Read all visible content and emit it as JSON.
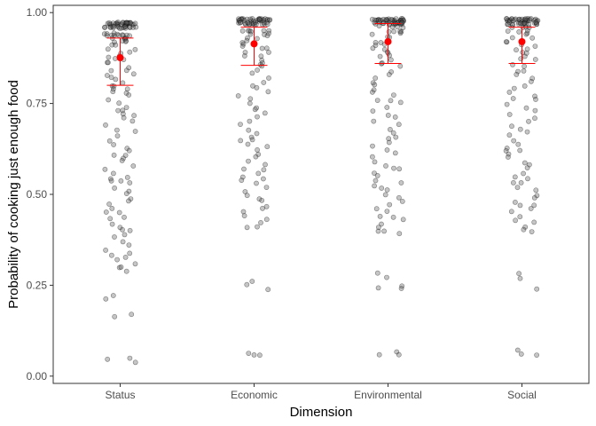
{
  "chart_data": {
    "type": "scatter",
    "title": "",
    "xlabel": "Dimension",
    "ylabel": "Probability of cooking just enough food",
    "categories": [
      "Status",
      "Economic",
      "Environmental",
      "Social"
    ],
    "yticks": [
      0.0,
      0.25,
      0.5,
      0.75,
      1.0
    ],
    "ytick_labels": [
      "0.00",
      "0.25",
      "0.50",
      "0.75",
      "1.00"
    ],
    "ylim": [
      -0.02,
      1.02
    ],
    "grid": false,
    "legend": "none",
    "point_color": "#595959",
    "summary_color": "#ff0000",
    "summary": [
      {
        "category": "Status",
        "mean": 0.876,
        "lower": 0.8,
        "upper": 0.93
      },
      {
        "category": "Economic",
        "mean": 0.914,
        "lower": 0.855,
        "upper": 0.96
      },
      {
        "category": "Environmental",
        "mean": 0.92,
        "lower": 0.86,
        "upper": 0.97
      },
      {
        "category": "Social",
        "mean": 0.92,
        "lower": 0.86,
        "upper": 0.96
      }
    ],
    "series": [
      {
        "category": "Status",
        "values": [
          0.97,
          0.97,
          0.97,
          0.97,
          0.97,
          0.97,
          0.97,
          0.97,
          0.97,
          0.97,
          0.97,
          0.97,
          0.97,
          0.97,
          0.97,
          0.97,
          0.97,
          0.97,
          0.97,
          0.97,
          0.97,
          0.97,
          0.97,
          0.97,
          0.97,
          0.97,
          0.97,
          0.97,
          0.97,
          0.97,
          0.96,
          0.96,
          0.96,
          0.96,
          0.96,
          0.96,
          0.96,
          0.96,
          0.96,
          0.96,
          0.96,
          0.96,
          0.96,
          0.96,
          0.96,
          0.96,
          0.96,
          0.96,
          0.96,
          0.96,
          0.94,
          0.94,
          0.94,
          0.94,
          0.94,
          0.94,
          0.94,
          0.94,
          0.94,
          0.94,
          0.94,
          0.94,
          0.93,
          0.93,
          0.93,
          0.93,
          0.92,
          0.92,
          0.92,
          0.92,
          0.91,
          0.91,
          0.9,
          0.9,
          0.89,
          0.89,
          0.88,
          0.88,
          0.87,
          0.87,
          0.86,
          0.86,
          0.85,
          0.84,
          0.84,
          0.83,
          0.83,
          0.82,
          0.82,
          0.81,
          0.8,
          0.8,
          0.79,
          0.79,
          0.78,
          0.78,
          0.77,
          0.76,
          0.75,
          0.74,
          0.73,
          0.73,
          0.72,
          0.72,
          0.71,
          0.7,
          0.69,
          0.68,
          0.67,
          0.66,
          0.65,
          0.64,
          0.63,
          0.62,
          0.61,
          0.61,
          0.6,
          0.59,
          0.58,
          0.57,
          0.56,
          0.55,
          0.54,
          0.54,
          0.54,
          0.53,
          0.52,
          0.51,
          0.5,
          0.49,
          0.48,
          0.47,
          0.46,
          0.45,
          0.45,
          0.44,
          0.43,
          0.42,
          0.41,
          0.4,
          0.4,
          0.39,
          0.38,
          0.37,
          0.36,
          0.35,
          0.34,
          0.33,
          0.33,
          0.32,
          0.31,
          0.3,
          0.3,
          0.29,
          0.22,
          0.21,
          0.17,
          0.16,
          0.05,
          0.05,
          0.04
        ]
      },
      {
        "category": "Economic",
        "values": [
          0.98,
          0.98,
          0.98,
          0.98,
          0.98,
          0.98,
          0.98,
          0.98,
          0.98,
          0.98,
          0.98,
          0.98,
          0.98,
          0.98,
          0.98,
          0.98,
          0.98,
          0.98,
          0.98,
          0.98,
          0.98,
          0.98,
          0.98,
          0.98,
          0.98,
          0.98,
          0.98,
          0.98,
          0.98,
          0.98,
          0.97,
          0.97,
          0.97,
          0.97,
          0.97,
          0.97,
          0.97,
          0.97,
          0.97,
          0.97,
          0.97,
          0.97,
          0.97,
          0.97,
          0.97,
          0.97,
          0.97,
          0.97,
          0.97,
          0.97,
          0.95,
          0.95,
          0.95,
          0.95,
          0.95,
          0.95,
          0.94,
          0.94,
          0.94,
          0.94,
          0.93,
          0.93,
          0.92,
          0.92,
          0.91,
          0.91,
          0.9,
          0.9,
          0.89,
          0.89,
          0.88,
          0.88,
          0.87,
          0.86,
          0.86,
          0.85,
          0.84,
          0.83,
          0.82,
          0.81,
          0.8,
          0.79,
          0.78,
          0.77,
          0.76,
          0.75,
          0.74,
          0.73,
          0.72,
          0.71,
          0.7,
          0.69,
          0.68,
          0.67,
          0.66,
          0.65,
          0.65,
          0.64,
          0.63,
          0.62,
          0.61,
          0.6,
          0.59,
          0.58,
          0.57,
          0.57,
          0.56,
          0.55,
          0.54,
          0.54,
          0.53,
          0.52,
          0.51,
          0.5,
          0.49,
          0.48,
          0.47,
          0.46,
          0.45,
          0.44,
          0.43,
          0.42,
          0.41,
          0.41,
          0.26,
          0.25,
          0.24,
          0.06,
          0.06,
          0.06
        ]
      },
      {
        "category": "Environmental",
        "values": [
          0.98,
          0.98,
          0.98,
          0.98,
          0.98,
          0.98,
          0.98,
          0.98,
          0.98,
          0.98,
          0.98,
          0.98,
          0.98,
          0.98,
          0.98,
          0.98,
          0.98,
          0.98,
          0.98,
          0.98,
          0.98,
          0.98,
          0.98,
          0.98,
          0.98,
          0.98,
          0.98,
          0.98,
          0.98,
          0.98,
          0.97,
          0.97,
          0.97,
          0.97,
          0.97,
          0.97,
          0.97,
          0.97,
          0.97,
          0.97,
          0.97,
          0.97,
          0.97,
          0.97,
          0.97,
          0.97,
          0.97,
          0.97,
          0.97,
          0.97,
          0.96,
          0.96,
          0.96,
          0.96,
          0.95,
          0.95,
          0.95,
          0.95,
          0.94,
          0.94,
          0.93,
          0.93,
          0.92,
          0.92,
          0.91,
          0.91,
          0.9,
          0.9,
          0.89,
          0.89,
          0.88,
          0.88,
          0.87,
          0.86,
          0.86,
          0.85,
          0.84,
          0.83,
          0.82,
          0.81,
          0.8,
          0.79,
          0.78,
          0.77,
          0.76,
          0.76,
          0.75,
          0.74,
          0.73,
          0.72,
          0.71,
          0.7,
          0.69,
          0.68,
          0.67,
          0.66,
          0.65,
          0.64,
          0.63,
          0.62,
          0.61,
          0.6,
          0.59,
          0.58,
          0.57,
          0.57,
          0.56,
          0.55,
          0.54,
          0.53,
          0.52,
          0.52,
          0.51,
          0.5,
          0.49,
          0.48,
          0.47,
          0.46,
          0.45,
          0.44,
          0.44,
          0.43,
          0.42,
          0.41,
          0.4,
          0.4,
          0.39,
          0.28,
          0.27,
          0.25,
          0.24,
          0.24,
          0.07,
          0.06,
          0.06
        ]
      },
      {
        "category": "Social",
        "values": [
          0.98,
          0.98,
          0.98,
          0.98,
          0.98,
          0.98,
          0.98,
          0.98,
          0.98,
          0.98,
          0.98,
          0.98,
          0.98,
          0.98,
          0.98,
          0.98,
          0.98,
          0.98,
          0.98,
          0.98,
          0.98,
          0.98,
          0.98,
          0.98,
          0.98,
          0.98,
          0.98,
          0.98,
          0.98,
          0.98,
          0.97,
          0.97,
          0.97,
          0.97,
          0.97,
          0.97,
          0.97,
          0.97,
          0.97,
          0.97,
          0.97,
          0.97,
          0.97,
          0.97,
          0.97,
          0.97,
          0.97,
          0.97,
          0.97,
          0.97,
          0.96,
          0.96,
          0.96,
          0.96,
          0.95,
          0.95,
          0.95,
          0.94,
          0.94,
          0.93,
          0.93,
          0.92,
          0.92,
          0.91,
          0.91,
          0.9,
          0.9,
          0.89,
          0.89,
          0.88,
          0.87,
          0.87,
          0.86,
          0.85,
          0.84,
          0.84,
          0.83,
          0.82,
          0.81,
          0.8,
          0.79,
          0.78,
          0.77,
          0.76,
          0.76,
          0.75,
          0.74,
          0.73,
          0.72,
          0.71,
          0.7,
          0.69,
          0.68,
          0.67,
          0.66,
          0.65,
          0.64,
          0.63,
          0.62,
          0.62,
          0.61,
          0.6,
          0.59,
          0.58,
          0.57,
          0.56,
          0.55,
          0.54,
          0.53,
          0.53,
          0.52,
          0.51,
          0.5,
          0.49,
          0.48,
          0.47,
          0.47,
          0.46,
          0.45,
          0.44,
          0.43,
          0.42,
          0.41,
          0.4,
          0.4,
          0.28,
          0.27,
          0.24,
          0.07,
          0.06,
          0.06
        ]
      }
    ]
  }
}
